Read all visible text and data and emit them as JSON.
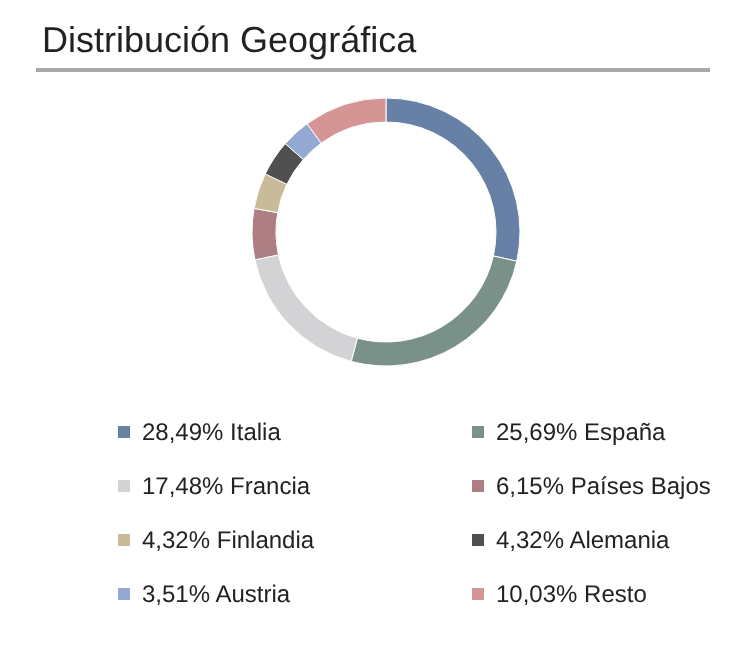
{
  "chart_data": {
    "type": "donut",
    "title": "Distribución Geográfica",
    "categories": [
      "Italia",
      "España",
      "Francia",
      "Países Bajos",
      "Finlandia",
      "Alemania",
      "Austria",
      "Resto"
    ],
    "values": [
      28.49,
      25.69,
      17.48,
      6.15,
      4.32,
      4.32,
      3.51,
      10.03
    ],
    "value_labels": [
      "28,49%",
      "25,69%",
      "17,48%",
      "6,15%",
      "4,32%",
      "4,32%",
      "3,51%",
      "10,03%"
    ],
    "colors": [
      "#6680a6",
      "#7a9189",
      "#d3d3d6",
      "#ad7f84",
      "#c9bb98",
      "#505050",
      "#93a8d3",
      "#d69595"
    ],
    "legend": "bottom"
  }
}
